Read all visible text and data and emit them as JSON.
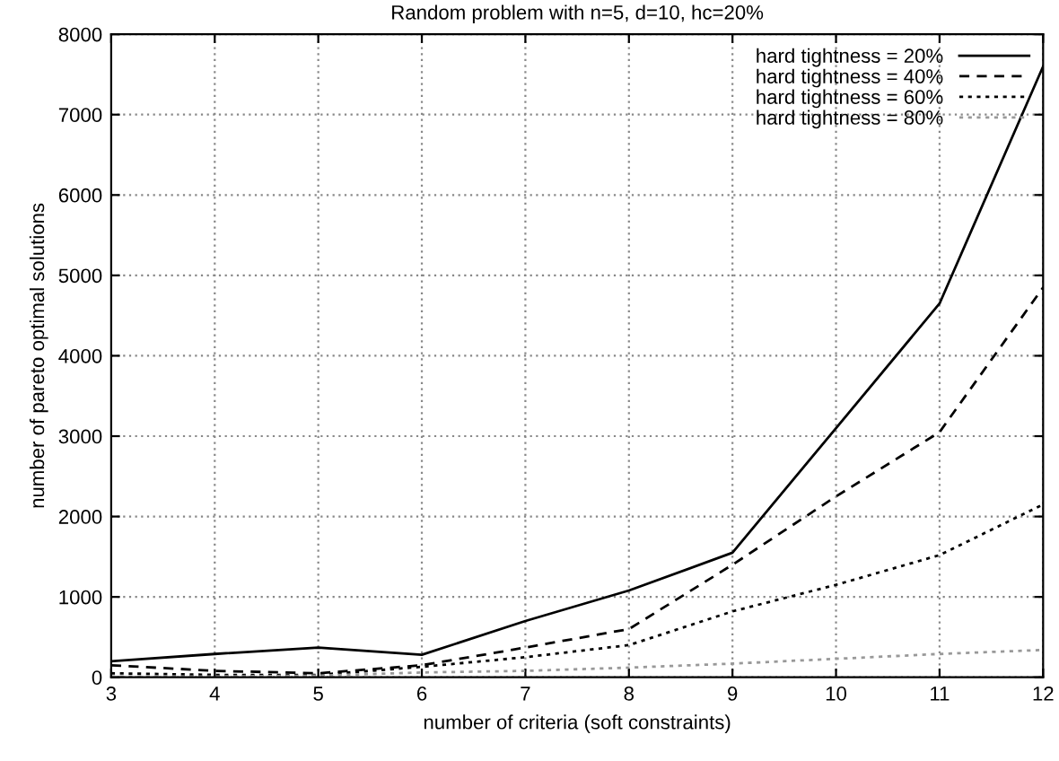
{
  "chart_data": {
    "type": "line",
    "title": "Random problem with n=5, d=10, hc=20%",
    "xlabel": "number of criteria (soft constraints)",
    "ylabel": "number of pareto optimal solutions",
    "x": [
      3,
      4,
      5,
      6,
      7,
      8,
      9,
      10,
      11,
      12
    ],
    "series": [
      {
        "name": "hard tightness = 20%",
        "color": "#000000",
        "line_style": "solid",
        "values": [
          200,
          290,
          370,
          280,
          700,
          1080,
          1550,
          3100,
          4650,
          7600
        ]
      },
      {
        "name": "hard tightness = 40%",
        "color": "#000000",
        "line_style": "dashed",
        "values": [
          150,
          80,
          50,
          150,
          370,
          600,
          1400,
          2250,
          3050,
          4850
        ]
      },
      {
        "name": "hard tightness = 60%",
        "color": "#000000",
        "line_style": "dotted",
        "values": [
          50,
          30,
          30,
          130,
          250,
          400,
          820,
          1150,
          1520,
          2150
        ]
      },
      {
        "name": "hard tightness = 80%",
        "color": "#999999",
        "line_style": "dotted",
        "values": [
          10,
          10,
          20,
          60,
          80,
          120,
          170,
          230,
          290,
          340
        ]
      }
    ],
    "xlim": [
      3,
      12
    ],
    "ylim": [
      0,
      8000
    ],
    "xticks": [
      3,
      4,
      5,
      6,
      7,
      8,
      9,
      10,
      11,
      12
    ],
    "yticks": [
      0,
      1000,
      2000,
      3000,
      4000,
      5000,
      6000,
      7000,
      8000
    ],
    "grid": true,
    "legend": "top right",
    "marker": "none"
  }
}
